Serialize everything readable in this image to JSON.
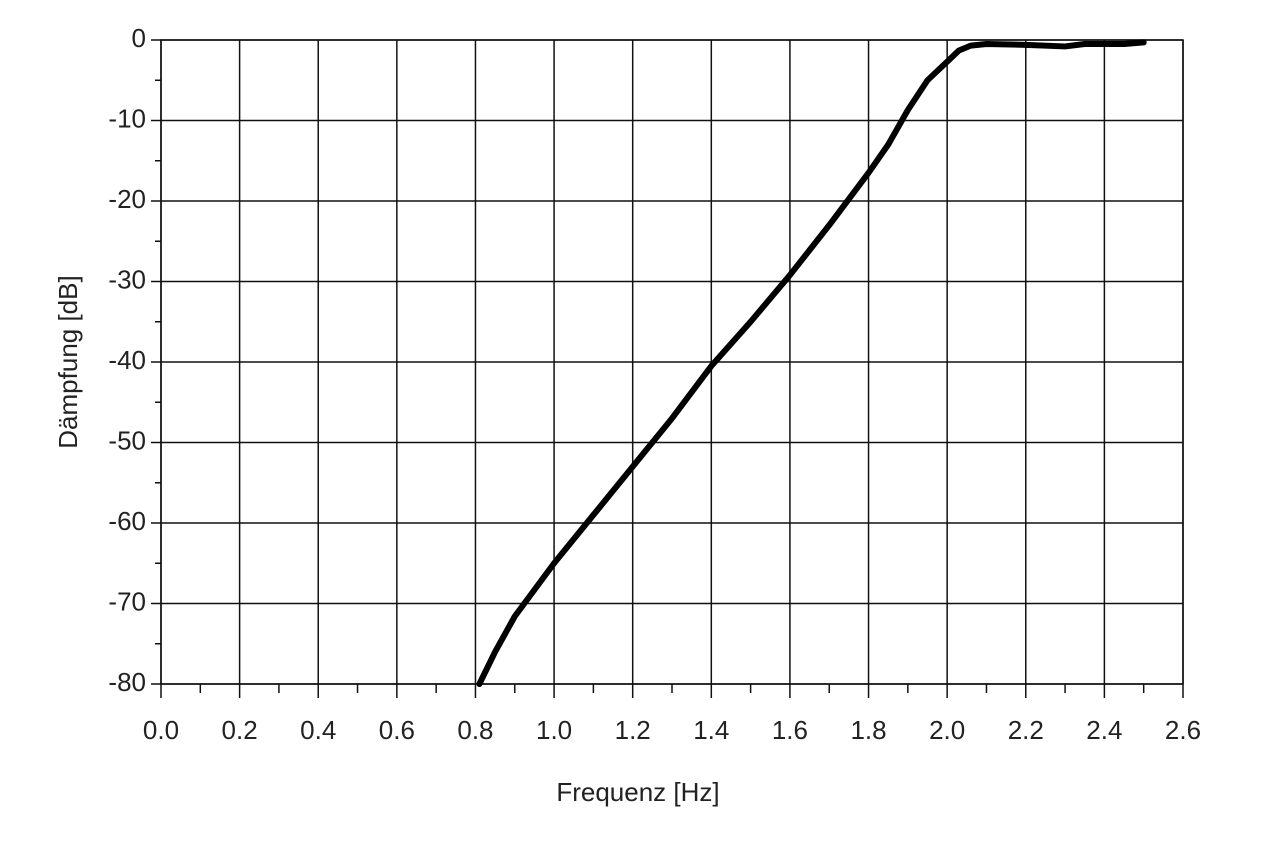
{
  "chart_data": {
    "type": "line",
    "x_label": "Frequenz [Hz]",
    "y_label": "Dämpfung [dB]",
    "xlim": [
      0,
      2.6
    ],
    "ylim": [
      -80,
      0
    ],
    "xticks": [
      {
        "value": 0,
        "label": "0.0"
      },
      0.2,
      0.4,
      0.6,
      0.8,
      {
        "value": 1,
        "label": "1.0"
      },
      1.2,
      1.4,
      1.6,
      1.8,
      {
        "value": 2,
        "label": "2.0"
      },
      2.2,
      2.4,
      2.6
    ],
    "yticks": [
      0,
      -10,
      -20,
      -30,
      -40,
      -50,
      -60,
      -70,
      -80
    ],
    "grid": true,
    "series": [
      {
        "color": "#000000",
        "x": [
          0.81,
          0.85,
          0.9,
          1.0,
          1.1,
          1.2,
          1.3,
          1.4,
          1.5,
          1.6,
          1.7,
          1.8,
          1.85,
          1.9,
          1.95,
          2.0,
          2.03,
          2.06,
          2.1,
          2.2,
          2.3,
          2.35,
          2.45,
          2.5
        ],
        "values": [
          -80,
          -76,
          -71.6,
          -65,
          -59,
          -53,
          -47,
          -40.5,
          -35,
          -29.2,
          -23,
          -16.5,
          -13,
          -8.7,
          -5,
          -2.7,
          -1.3,
          -0.7,
          -0.5,
          -0.6,
          -0.8,
          -0.5,
          -0.5,
          -0.3
        ]
      }
    ]
  }
}
